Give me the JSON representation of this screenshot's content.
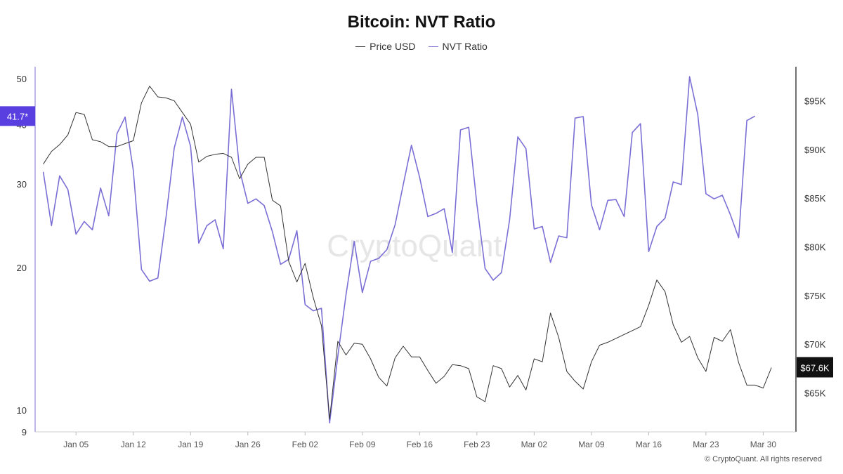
{
  "chart_data": {
    "type": "line",
    "title": "Bitcoin: NVT Ratio",
    "watermark": "CryptoQuant",
    "copyright": "© CryptoQuant. All rights reserved",
    "x_ticks": [
      "Jan 05",
      "Jan 12",
      "Jan 19",
      "Jan 26",
      "Feb 02",
      "Feb 09",
      "Feb 16",
      "Feb 23",
      "Mar 02",
      "Mar 09",
      "Mar 16",
      "Mar 23",
      "Mar 30"
    ],
    "y_left": {
      "scale": "log",
      "ticks": [
        9,
        10,
        20,
        30,
        40,
        50
      ],
      "range": [
        9,
        53
      ]
    },
    "y_right": {
      "ticks": [
        "$65K",
        "$70K",
        "$75K",
        "$80K",
        "$85K",
        "$90K",
        "$95K"
      ],
      "tick_values": [
        65000,
        70000,
        75000,
        80000,
        85000,
        90000,
        95000
      ],
      "range": [
        61000,
        98500
      ]
    },
    "badges": {
      "nvt_last": "41.7*",
      "price_last": "$67.6K"
    },
    "colors": {
      "nvt": "#7b6fd6",
      "price": "#333333",
      "badge_nvt_bg": "#5a3fe0",
      "badge_price_bg": "#111111",
      "left_axis": "#7b6fd6",
      "right_axis": "#111111"
    },
    "series": [
      {
        "name": "Price USD",
        "axis": "right",
        "x_start": "2025-01-01",
        "step_days": 1,
        "values": [
          88500,
          89800,
          90500,
          91500,
          93800,
          93600,
          91000,
          90800,
          90300,
          90300,
          90600,
          90900,
          94800,
          96500,
          95400,
          95300,
          95000,
          93800,
          92600,
          88700,
          89300,
          89500,
          89600,
          89200,
          87000,
          88500,
          89200,
          89200,
          84800,
          84200,
          78500,
          76400,
          78300,
          74800,
          71900,
          62300,
          70300,
          68900,
          70100,
          70000,
          68500,
          66600,
          65700,
          68600,
          69800,
          68700,
          68700,
          67300,
          66000,
          66700,
          67900,
          67800,
          67500,
          64600,
          64100,
          67800,
          67500,
          65600,
          66800,
          65300,
          68500,
          68200,
          73200,
          70700,
          67200,
          66200,
          65400,
          68200,
          69900,
          70200,
          70600,
          71000,
          71400,
          71800,
          74000,
          76600,
          75400,
          72000,
          70200,
          70800,
          68600,
          67200,
          70700,
          70300,
          71500,
          68100,
          65800,
          65800,
          65500,
          67600
        ]
      },
      {
        "name": "NVT Ratio",
        "axis": "left",
        "x_start": "2025-01-01",
        "step_days": 1,
        "values": [
          31.8,
          24.5,
          31.2,
          29.2,
          23.5,
          25.0,
          24.0,
          29.4,
          25.7,
          38.3,
          41.5,
          32.1,
          19.8,
          18.7,
          19.0,
          25.5,
          35.7,
          41.5,
          36.0,
          22.5,
          24.5,
          25.2,
          21.9,
          47.5,
          32.1,
          27.3,
          27.9,
          27.0,
          23.8,
          20.3,
          20.8,
          23.9,
          16.7,
          16.2,
          16.4,
          9.4,
          13.0,
          17.5,
          22.7,
          17.7,
          20.6,
          20.9,
          21.8,
          24.6,
          29.9,
          36.2,
          31.0,
          25.6,
          26.0,
          26.6,
          21.5,
          39.0,
          39.5,
          27.2,
          19.9,
          18.8,
          19.5,
          25.2,
          37.7,
          35.6,
          24.1,
          24.4,
          20.5,
          23.3,
          23.1,
          41.3,
          41.6,
          27.1,
          24.0,
          27.7,
          27.8,
          25.6,
          38.5,
          40.2,
          21.6,
          24.4,
          25.4,
          30.3,
          29.9,
          50.5,
          42.0,
          28.6,
          27.9,
          28.4,
          25.8,
          23.1,
          40.8,
          41.7
        ]
      }
    ]
  }
}
